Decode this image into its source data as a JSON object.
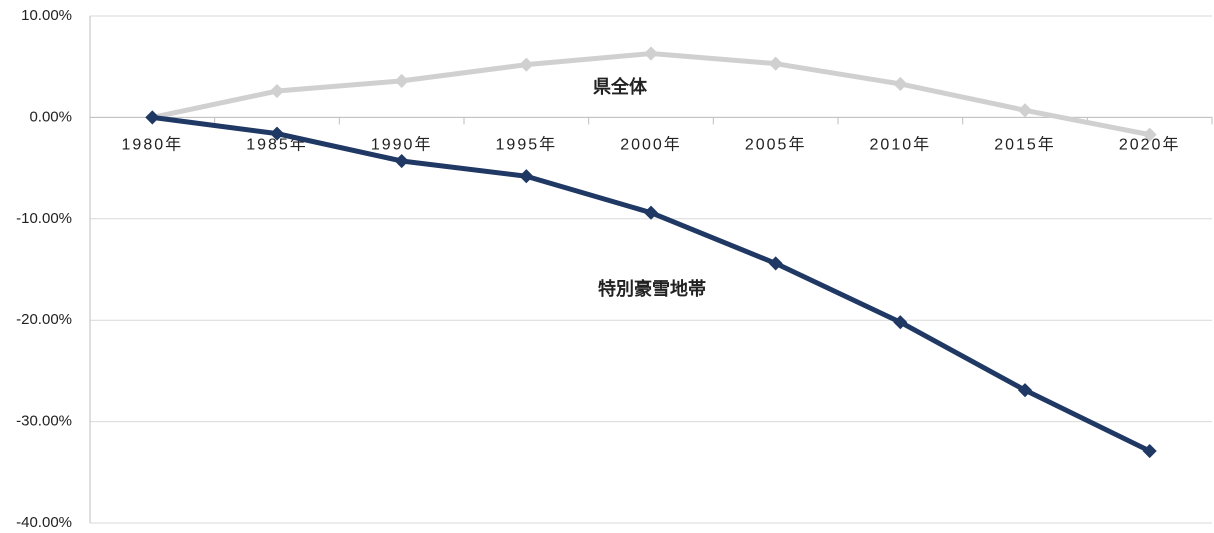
{
  "chart_data": {
    "type": "line",
    "categories": [
      "1980年",
      "1985年",
      "1990年",
      "1995年",
      "2000年",
      "2005年",
      "2010年",
      "2015年",
      "2020年"
    ],
    "series": [
      {
        "name": "県全体",
        "color": "#d0d0d0",
        "values": [
          0,
          2.6,
          3.6,
          5.2,
          6.3,
          5.3,
          3.3,
          0.7,
          -1.7
        ]
      },
      {
        "name": "特別豪雪地帯",
        "color": "#1f3864",
        "values": [
          0,
          -1.6,
          -4.3,
          -5.8,
          -9.4,
          -14.4,
          -20.2,
          -26.9,
          -32.9
        ]
      }
    ],
    "ylim": [
      -40,
      10
    ],
    "yticks": [
      {
        "value": -40,
        "label": "-40.00%"
      },
      {
        "value": -30,
        "label": "-30.00%"
      },
      {
        "value": -20,
        "label": "-20.00%"
      },
      {
        "value": -10,
        "label": "-10.00%"
      },
      {
        "value": 0,
        "label": "0.00%"
      },
      {
        "value": 10,
        "label": "10.00%"
      }
    ],
    "grid": true
  }
}
